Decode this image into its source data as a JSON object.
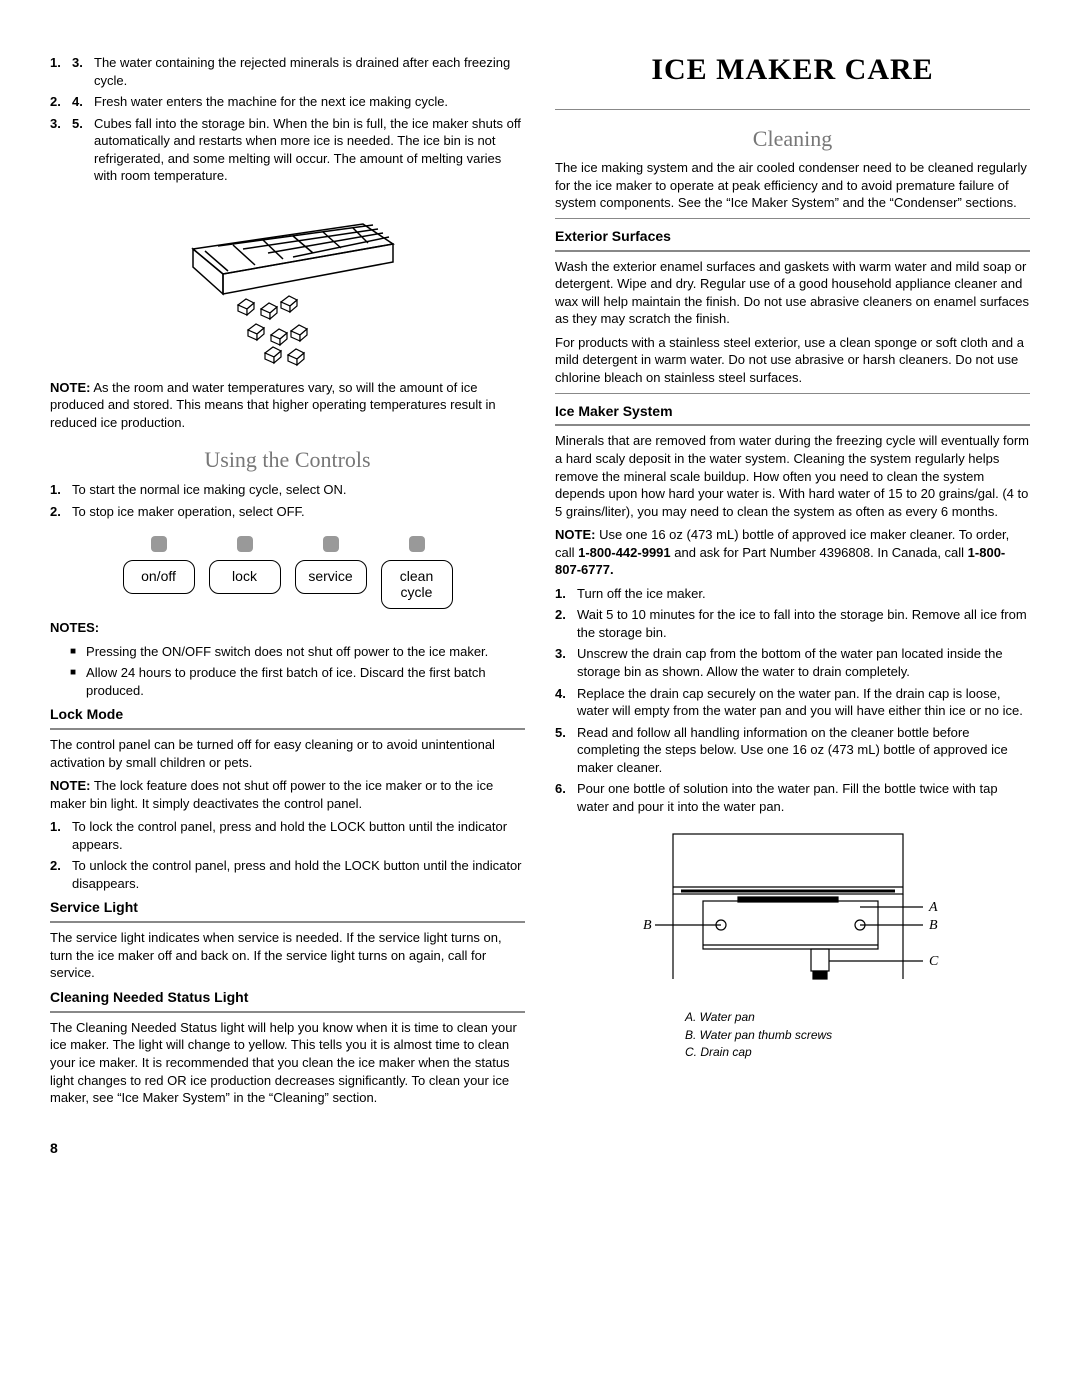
{
  "left": {
    "ol1": [
      {
        "n": "3.",
        "t": "The water containing the rejected minerals is drained after each freezing cycle."
      },
      {
        "n": "4.",
        "t": "Fresh water enters the machine for the next ice making cycle."
      },
      {
        "n": "5.",
        "t": "Cubes fall into the storage bin. When the bin is full, the ice maker shuts off automatically and restarts when more ice is needed. The ice bin is not refrigerated, and some melting will occur. The amount of melting varies with room temperature."
      }
    ],
    "note1_label": "NOTE:",
    "note1": " As the room and water temperatures vary, so will the amount of ice produced and stored. This means that higher operating temperatures result in reduced ice production.",
    "h2_controls": "Using the Controls",
    "ol2": [
      "To start the normal ice making cycle, select ON.",
      "To stop ice maker operation, select OFF."
    ],
    "buttons": [
      "on/off",
      "lock",
      "service",
      "clean\ncycle"
    ],
    "notes_label": "NOTES:",
    "notes_bullets": [
      "Pressing the ON/OFF switch does not shut off power to the ice maker.",
      "Allow 24 hours to produce the first batch of ice. Discard the first batch produced."
    ],
    "h3_lock": "Lock Mode",
    "lock_p1": "The control panel can be turned off for easy cleaning or to avoid unintentional activation by small children or pets.",
    "lock_note_label": "NOTE:",
    "lock_note": " The lock feature does not shut off power to the ice maker or to the ice maker bin light. It simply deactivates the control panel.",
    "lock_ol": [
      "To lock the control panel, press and hold the LOCK button until the indicator appears.",
      "To unlock the control panel, press and hold the LOCK button until the indicator disappears."
    ],
    "h3_service": "Service Light",
    "service_p": "The service light indicates when service is needed. If the service light turns on, turn the ice maker off and back on. If the service light turns on again, call for service.",
    "h3_clean": "Cleaning Needed Status Light",
    "clean_p": "The Cleaning Needed Status light will help you know when it is time to clean your ice maker. The light will change to yellow. This tells you it is almost time to clean your ice maker. It is recommended that you clean the ice maker when the status light changes to red OR ice production decreases significantly. To clean your ice maker, see “Ice Maker System” in the “Cleaning” section."
  },
  "right": {
    "h1": "ICE MAKER CARE",
    "h2_cleaning": "Cleaning",
    "intro": "The ice making system and the air cooled condenser need to be cleaned regularly for the ice maker to operate at peak efficiency and to avoid premature failure of system components. See the “Ice Maker System” and the “Condenser” sections.",
    "h3_ext": "Exterior Surfaces",
    "ext_p1": "Wash the exterior enamel surfaces and gaskets with warm water and mild soap or detergent. Wipe and dry. Regular use of a good household appliance cleaner and wax will help maintain the finish. Do not use abrasive cleaners on enamel surfaces as they may scratch the finish.",
    "ext_p2": "For products with a stainless steel exterior, use a clean sponge or soft cloth and a mild detergent in warm water. Do not use abrasive or harsh cleaners. Do not use chlorine bleach on stainless steel surfaces.",
    "h3_sys": "Ice Maker System",
    "sys_p1": "Minerals that are removed from water during the freezing cycle will eventually form a hard scaly deposit in the water system. Cleaning the system regularly helps remove the mineral scale buildup. How often you need to clean the system depends upon how hard your water is. With hard water of 15 to 20 grains/gal. (4 to 5 grains/liter), you may need to clean the system as often as every 6 months.",
    "sys_note_label": "NOTE:",
    "sys_note_a": " Use one 16 oz (473 mL) bottle of approved ice maker cleaner. To order, call ",
    "sys_phone1": "1-800-442-9991",
    "sys_note_b": " and ask for Part Number 4396808. In Canada, call ",
    "sys_phone2": "1-800-807-6777.",
    "sys_ol": [
      "Turn off the ice maker.",
      "Wait 5 to 10 minutes for the ice to fall into the storage bin. Remove all ice from the storage bin.",
      "Unscrew the drain cap from the bottom of the water pan located inside the storage bin as shown. Allow the water to drain completely.",
      "Replace the drain cap securely on the water pan. If the drain cap is loose, water will empty from the water pan and you will have either thin ice or no ice.",
      "Read and follow all handling information on the cleaner bottle before completing the steps below. Use one 16 oz (473 mL) bottle of approved ice maker cleaner.",
      "Pour one bottle of solution into the water pan. Fill the bottle twice with tap water and pour it into the water pan."
    ],
    "caption": {
      "a": "A. Water pan",
      "b": "B. Water pan thumb screws",
      "c": "C. Drain cap"
    },
    "labels": {
      "A": "A",
      "B": "B",
      "C": "C"
    }
  },
  "page_number": "8"
}
